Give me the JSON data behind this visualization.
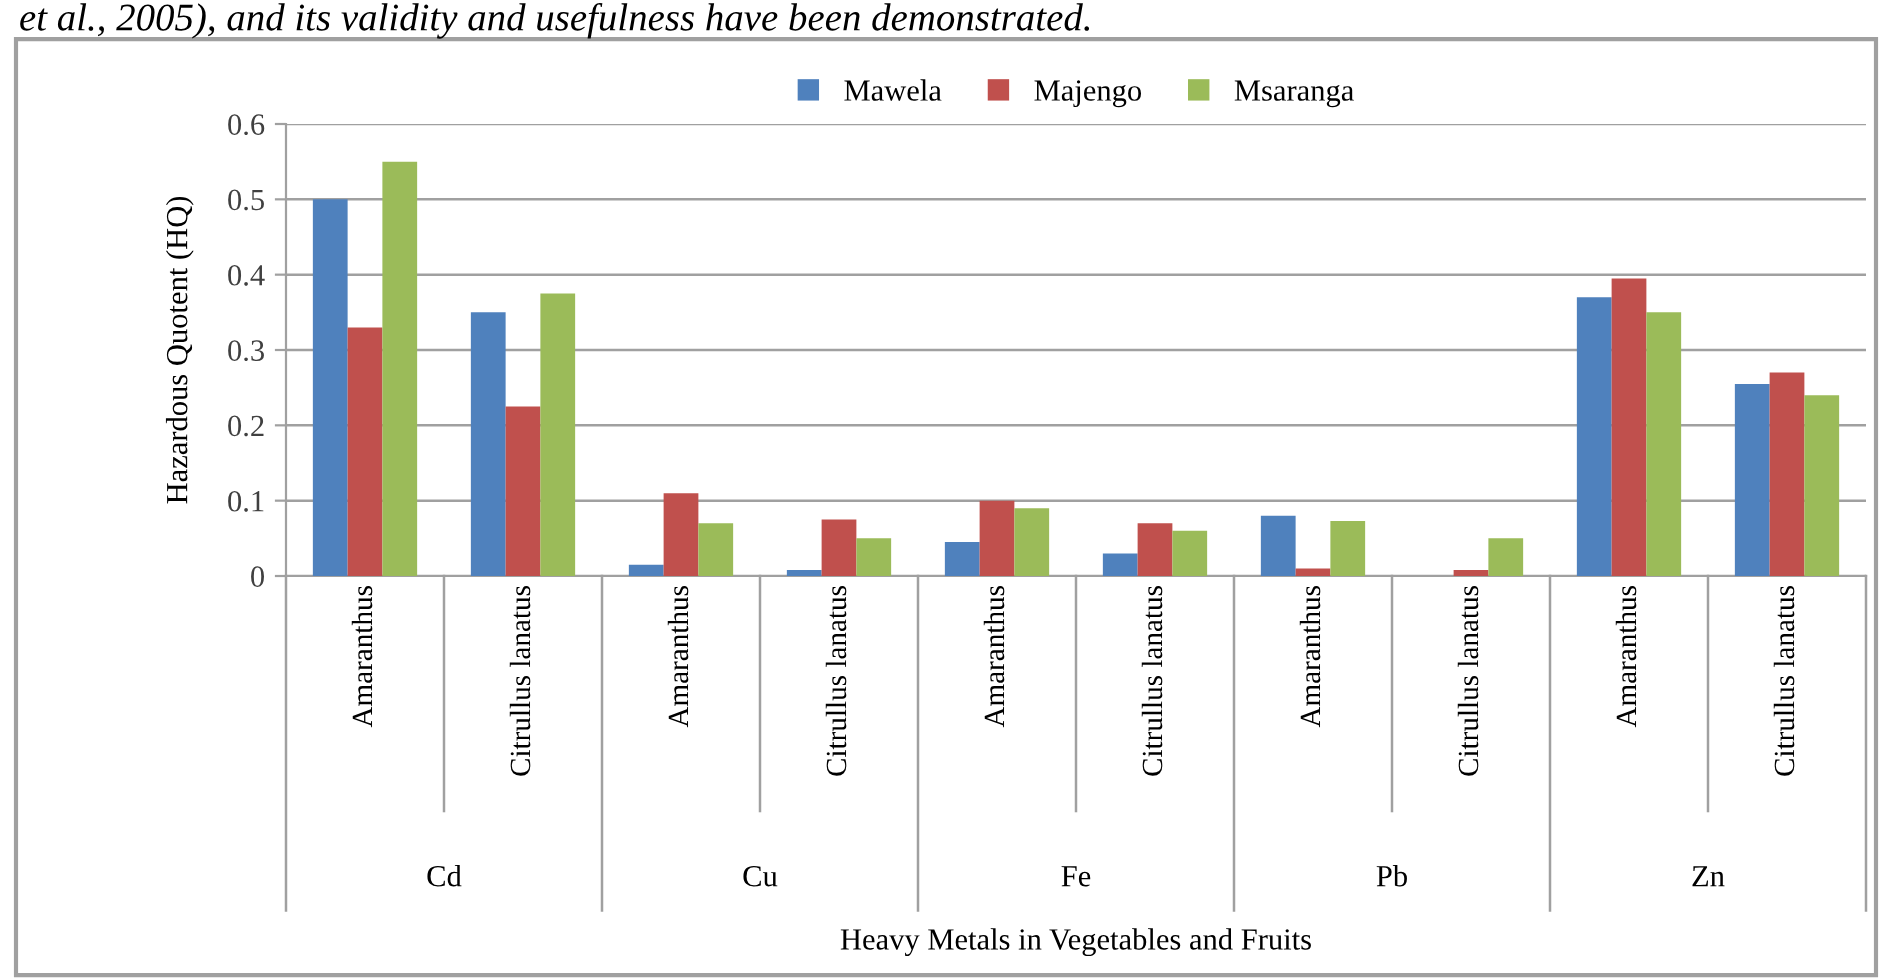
{
  "chart_data": {
    "type": "bar",
    "xlabel": "Heavy Metals in Vegetables and Fruits",
    "ylabel": "Hazardous Quotent (HQ)",
    "categories": [
      "Amaranthus",
      "Citrullus lanatus",
      "Amaranthus",
      "Citrullus lanatus",
      "Amaranthus",
      "Citrullus lanatus",
      "Amaranthus",
      "Citrullus lanatus",
      "Amaranthus",
      "Citrullus lanatus"
    ],
    "series": [
      {
        "name": "Mawela",
        "color": "#4f81bd",
        "values": [
          0.5,
          0.35,
          0.015,
          0.008,
          0.045,
          0.03,
          0.08,
          0,
          0.37,
          0.255
        ]
      },
      {
        "name": "Majengo",
        "color": "#c0504d",
        "values": [
          0.33,
          0.225,
          0.11,
          0.075,
          0.1,
          0.07,
          0.01,
          0.008,
          0.395,
          0.27
        ]
      },
      {
        "name": "Msaranga",
        "color": "#9bbb59",
        "values": [
          0.55,
          0.375,
          0.07,
          0.05,
          0.09,
          0.06,
          0.073,
          0.05,
          0.35,
          0.24
        ]
      }
    ],
    "annotations": [
      "et al., 2005), and its validity and usefulness have been demonstrated.",
      "Cd",
      "Cu",
      "Fe",
      "Pb",
      "Zn"
    ],
    "ylim": [
      0,
      0.6
    ],
    "yticks": [
      {
        "value": 0,
        "label": "0"
      },
      {
        "value": 0.1,
        "label": "0.1"
      },
      {
        "value": 0.2,
        "label": "0.2"
      },
      {
        "value": 0.3,
        "label": "0.3"
      },
      {
        "value": 0.4,
        "label": "0.4"
      },
      {
        "value": 0.5,
        "label": "0.5"
      },
      {
        "value": 0.6,
        "label": "0.6"
      }
    ],
    "grid": "y",
    "legend": "top"
  }
}
